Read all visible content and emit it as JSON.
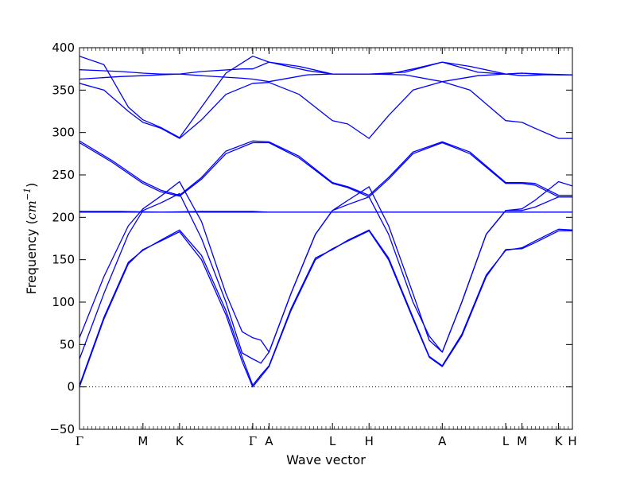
{
  "chart_data": {
    "type": "line",
    "title": "",
    "xlabel": "Wave vector",
    "ylabel": "Frequency (cm⁻¹)",
    "ylabel_prefix": "Frequency (",
    "ylabel_unit": "cm",
    "ylabel_exp": "−1",
    "ylabel_suffix": ")",
    "ylim": [
      -50,
      400
    ],
    "yticks": [
      -50,
      0,
      50,
      100,
      150,
      200,
      250,
      300,
      350,
      400
    ],
    "ytick_labels": [
      "−50",
      "0",
      "50",
      "100",
      "150",
      "200",
      "250",
      "300",
      "350",
      "400"
    ],
    "grid": false,
    "zero_line": true,
    "line_color": "#0000ff",
    "xlim": [
      0,
      6.06
    ],
    "kpoints": [
      {
        "label": "Γ",
        "x": 0
      },
      {
        "label": "M",
        "x": 0.78
      },
      {
        "label": "K",
        "x": 1.23
      },
      {
        "label": "Γ",
        "x": 2.13
      },
      {
        "label": "A",
        "x": 2.33
      },
      {
        "label": "L",
        "x": 3.11
      },
      {
        "label": "H",
        "x": 3.56
      },
      {
        "label": "A",
        "x": 4.46
      },
      {
        "label": "L",
        "x": 5.24
      },
      {
        "label": "M",
        "x": 5.44
      },
      {
        "label": "K",
        "x": 5.89
      },
      {
        "label": "H",
        "x": 6.06
      }
    ],
    "series": [
      {
        "x": [
          0,
          0.3,
          0.6,
          0.78,
          1.0,
          1.23,
          1.5,
          1.8,
          2.0,
          2.13,
          2.23,
          2.33,
          2.6,
          2.9,
          3.11,
          3.3,
          3.56,
          3.8,
          4.1,
          4.3,
          4.46,
          4.7,
          5.0,
          5.24,
          5.44,
          5.6,
          5.89,
          6.06
        ],
        "y": [
          0,
          80,
          145,
          162,
          172,
          183,
          150,
          85,
          30,
          0,
          12,
          24,
          90,
          150,
          163,
          172,
          184,
          150,
          80,
          35,
          24,
          60,
          130,
          162,
          163,
          170,
          184,
          184
        ]
      },
      {
        "x": [
          0,
          0.3,
          0.6,
          0.78,
          1.0,
          1.23,
          1.5,
          1.8,
          2.0,
          2.13,
          2.23,
          2.33,
          2.6,
          2.9,
          3.11,
          3.3,
          3.56,
          3.8,
          4.1,
          4.3,
          4.46,
          4.7,
          5.0,
          5.24,
          5.44,
          5.6,
          5.89,
          6.06
        ],
        "y": [
          2,
          82,
          147,
          161,
          173,
          185,
          155,
          90,
          35,
          2,
          14,
          25,
          92,
          152,
          162,
          173,
          185,
          152,
          82,
          36,
          25,
          62,
          132,
          161,
          164,
          172,
          186,
          185
        ]
      },
      {
        "x": [
          0,
          0.3,
          0.6,
          0.78,
          1.0,
          1.23,
          1.5,
          1.8,
          2.0,
          2.13,
          2.23,
          2.33,
          2.6,
          2.9,
          3.11,
          3.3,
          3.56,
          3.8,
          4.1,
          4.3,
          4.46,
          4.7,
          5.0,
          5.24,
          5.44,
          5.6,
          5.89,
          6.06
        ],
        "y": [
          33,
          110,
          180,
          208,
          217,
          228,
          175,
          100,
          40,
          33,
          28,
          41,
          110,
          180,
          208,
          215,
          224,
          180,
          100,
          60,
          41,
          100,
          180,
          208,
          208,
          212,
          224,
          224
        ]
      },
      {
        "x": [
          0,
          0.3,
          0.6,
          0.78,
          1.0,
          1.23,
          1.5,
          1.8,
          2.0,
          2.13,
          2.23,
          2.33,
          2.6,
          2.9,
          3.11,
          3.3,
          3.56,
          3.8,
          4.1,
          4.3,
          4.46,
          4.7,
          5.0,
          5.24,
          5.44,
          5.6,
          5.89,
          6.06
        ],
        "y": [
          58,
          130,
          190,
          210,
          225,
          242,
          195,
          110,
          65,
          58,
          55,
          41,
          110,
          180,
          208,
          220,
          236,
          190,
          110,
          55,
          41,
          100,
          180,
          208,
          210,
          220,
          242,
          237
        ]
      },
      {
        "x": [
          0,
          0.5,
          1.0,
          1.5,
          2.13,
          2.33,
          3.0,
          3.56,
          4.46,
          5.24,
          5.89,
          6.06
        ],
        "y": [
          206,
          206,
          206,
          206,
          206,
          206,
          206,
          206,
          206,
          206,
          206,
          206
        ]
      },
      {
        "x": [
          0,
          0.5,
          1.0,
          1.5,
          2.13,
          2.33,
          3.0,
          3.56,
          4.46,
          5.24,
          5.89,
          6.06
        ],
        "y": [
          207,
          207,
          206,
          207,
          207,
          206,
          206,
          206,
          206,
          206,
          206,
          206
        ]
      },
      {
        "x": [
          0,
          0.4,
          0.78,
          1.0,
          1.23,
          1.5,
          1.8,
          2.13,
          2.33,
          2.7,
          3.11,
          3.3,
          3.56,
          3.8,
          4.1,
          4.46,
          4.8,
          5.24,
          5.44,
          5.6,
          5.89,
          6.06
        ],
        "y": [
          288,
          265,
          240,
          230,
          225,
          245,
          275,
          288,
          288,
          270,
          240,
          235,
          224,
          245,
          275,
          288,
          275,
          240,
          240,
          238,
          224,
          224
        ]
      },
      {
        "x": [
          0,
          0.4,
          0.78,
          1.0,
          1.23,
          1.5,
          1.8,
          2.13,
          2.33,
          2.7,
          3.11,
          3.3,
          3.56,
          3.8,
          4.1,
          4.46,
          4.8,
          5.24,
          5.44,
          5.6,
          5.89,
          6.06
        ],
        "y": [
          290,
          267,
          242,
          232,
          226,
          247,
          278,
          290,
          289,
          272,
          241,
          236,
          226,
          247,
          277,
          289,
          277,
          241,
          241,
          240,
          226,
          226
        ]
      },
      {
        "x": [
          0,
          0.3,
          0.6,
          0.78,
          1.0,
          1.23,
          1.5,
          1.8,
          2.13,
          2.33,
          2.7,
          3.11,
          3.3,
          3.56,
          3.8,
          4.1,
          4.46,
          4.8,
          5.24,
          5.44,
          5.6,
          5.89,
          6.06
        ],
        "y": [
          358,
          350,
          325,
          312,
          305,
          293,
          315,
          345,
          358,
          359,
          345,
          314,
          310,
          293,
          320,
          350,
          360,
          350,
          314,
          312,
          305,
          293,
          293
        ]
      },
      {
        "x": [
          0,
          0.3,
          0.6,
          0.78,
          1.0,
          1.23,
          1.5,
          1.8,
          2.13,
          2.33,
          2.7,
          3.11,
          3.3,
          3.56,
          3.8,
          4.1,
          4.46,
          4.8,
          5.24,
          5.44,
          5.6,
          5.89,
          6.06
        ],
        "y": [
          390,
          380,
          330,
          315,
          306,
          294,
          330,
          370,
          390,
          383,
          378,
          369,
          369,
          369,
          369,
          375,
          383,
          378,
          369,
          370,
          369,
          368,
          368
        ]
      },
      {
        "x": [
          0,
          0.5,
          0.78,
          1.0,
          1.23,
          1.5,
          2.0,
          2.13,
          2.33,
          2.8,
          3.11,
          3.56,
          4.0,
          4.46,
          4.9,
          5.24,
          5.44,
          5.7,
          6.06
        ],
        "y": [
          374,
          372,
          370,
          369,
          369,
          372,
          375,
          375,
          383,
          373,
          369,
          369,
          371,
          383,
          371,
          369,
          370,
          369,
          368
        ]
      },
      {
        "x": [
          0,
          0.5,
          0.78,
          1.0,
          1.23,
          1.5,
          2.0,
          2.13,
          2.33,
          2.8,
          3.11,
          3.56,
          4.0,
          4.46,
          4.9,
          5.24,
          5.44,
          5.7,
          6.06
        ],
        "y": [
          363,
          366,
          367,
          368,
          369,
          367,
          364,
          363,
          360,
          368,
          369,
          369,
          368,
          360,
          367,
          369,
          367,
          368,
          368
        ]
      }
    ]
  }
}
